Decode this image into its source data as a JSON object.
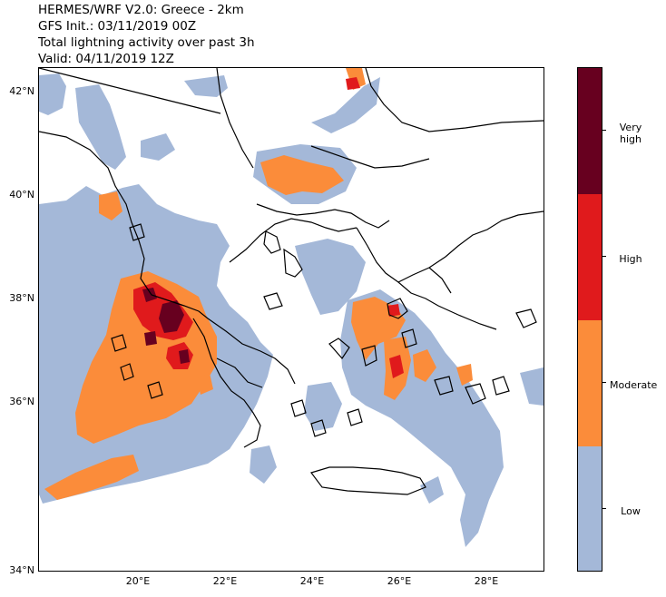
{
  "title": {
    "line1": "HERMES/WRF V2.0: Greece - 2km",
    "line2": "GFS Init.: 03/11/2019 00Z",
    "line3": "Total lightning activity over past 3h",
    "line4": "Valid: 04/11/2019 12Z"
  },
  "axes": {
    "lat_labels": [
      "42°N",
      "40°N",
      "38°N",
      "36°N",
      "34°N"
    ],
    "lon_labels": [
      "20°E",
      "22°E",
      "24°E",
      "26°E",
      "28°E"
    ]
  },
  "colorbar": {
    "levels": [
      {
        "label": "Low",
        "color": "#a4b8d8"
      },
      {
        "label": "Moderate",
        "color": "#fb8c3a"
      },
      {
        "label": "High",
        "color": "#e01a1c"
      },
      {
        "label": "Very\nhigh",
        "color": "#67001f"
      }
    ]
  },
  "colors": {
    "low": "#a4b8d8",
    "moderate": "#fb8c3a",
    "high": "#e01a1c",
    "very_high": "#67001f",
    "coastline": "#000000"
  }
}
